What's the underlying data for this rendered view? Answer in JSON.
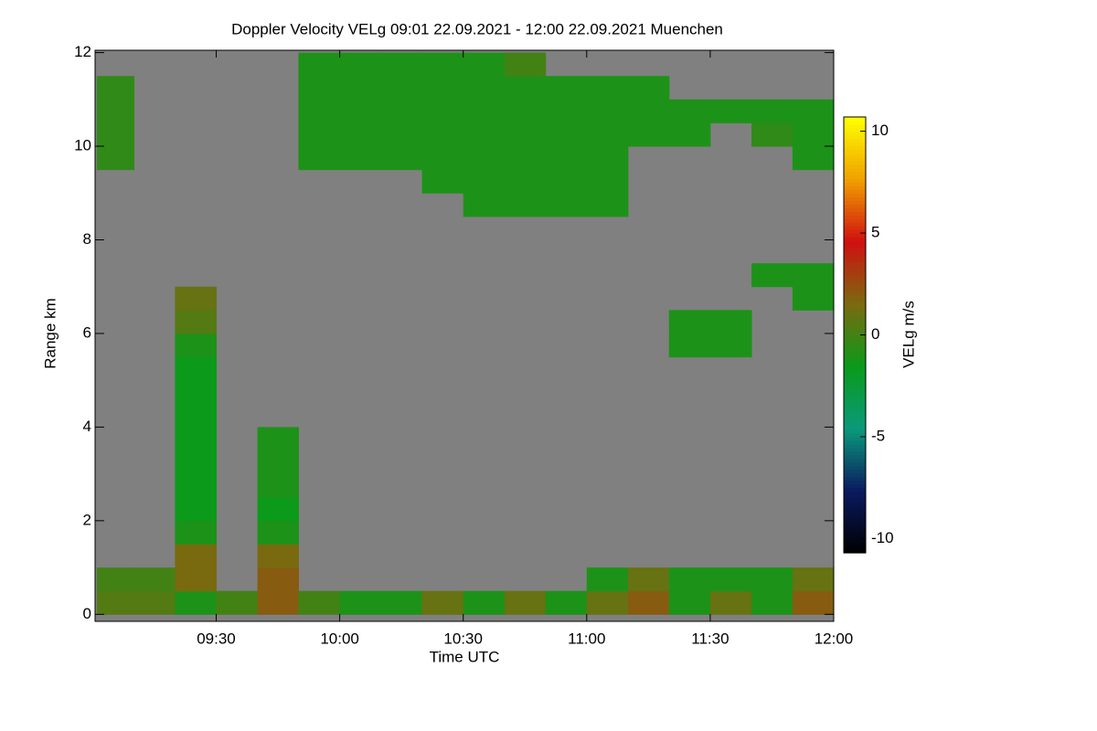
{
  "chart_data": {
    "type": "heatmap",
    "title": "Doppler Velocity VELg   09:01 22.09.2021 - 12:00 22.09.2021 Muenchen",
    "xlabel": "Time UTC",
    "ylabel": "Range km",
    "colorbar_label": "VELg m/s",
    "x_edges": [
      9.017,
      9.167,
      9.333,
      9.5,
      9.667,
      9.833,
      10.0,
      10.167,
      10.333,
      10.5,
      10.667,
      10.833,
      11.0,
      11.167,
      11.333,
      11.5,
      11.667,
      11.833,
      12.0
    ],
    "y_edges": [
      0,
      0.5,
      1,
      1.5,
      2,
      2.5,
      3,
      3.5,
      4,
      4.5,
      5,
      5.5,
      6,
      6.5,
      7,
      7.5,
      8,
      8.5,
      9,
      9.5,
      10,
      10.5,
      11,
      11.5,
      12
    ],
    "z": [
      [
        0.5,
        0.5,
        -1,
        0,
        2,
        0,
        -1,
        -1,
        1,
        -1,
        1,
        -1,
        1,
        2,
        -1,
        1,
        -1,
        2
      ],
      [
        0,
        0,
        1.5,
        null,
        2,
        null,
        null,
        null,
        null,
        null,
        null,
        null,
        -1,
        1,
        -1,
        -1,
        -1,
        1
      ],
      [
        null,
        null,
        1.5,
        null,
        1.5,
        null,
        null,
        null,
        null,
        null,
        null,
        null,
        null,
        null,
        null,
        null,
        null,
        null
      ],
      [
        null,
        null,
        -1,
        null,
        -1,
        null,
        null,
        null,
        null,
        null,
        null,
        null,
        null,
        null,
        null,
        null,
        null,
        null
      ],
      [
        null,
        null,
        -1.5,
        null,
        -1.5,
        null,
        null,
        null,
        null,
        null,
        null,
        null,
        null,
        null,
        null,
        null,
        null,
        null
      ],
      [
        null,
        null,
        -1.5,
        null,
        -1,
        null,
        null,
        null,
        null,
        null,
        null,
        null,
        null,
        null,
        null,
        null,
        null,
        null
      ],
      [
        null,
        null,
        -1.5,
        null,
        -1,
        null,
        null,
        null,
        null,
        null,
        null,
        null,
        null,
        null,
        null,
        null,
        null,
        null
      ],
      [
        null,
        null,
        -1.5,
        null,
        -1,
        null,
        null,
        null,
        null,
        null,
        null,
        null,
        null,
        null,
        null,
        null,
        null,
        null
      ],
      [
        null,
        null,
        -1.5,
        null,
        null,
        null,
        null,
        null,
        null,
        null,
        null,
        null,
        null,
        null,
        null,
        null,
        null,
        null
      ],
      [
        null,
        null,
        -1.5,
        null,
        null,
        null,
        null,
        null,
        null,
        null,
        null,
        null,
        null,
        null,
        null,
        null,
        null,
        null
      ],
      [
        null,
        null,
        -1.5,
        null,
        null,
        null,
        null,
        null,
        null,
        null,
        null,
        null,
        null,
        null,
        null,
        null,
        null,
        null
      ],
      [
        null,
        null,
        -1,
        null,
        null,
        null,
        null,
        null,
        null,
        null,
        null,
        null,
        null,
        null,
        -1,
        -1,
        null,
        null
      ],
      [
        null,
        null,
        0.5,
        null,
        null,
        null,
        null,
        null,
        null,
        null,
        null,
        null,
        null,
        null,
        -1,
        -1,
        null,
        null
      ],
      [
        null,
        null,
        1,
        null,
        null,
        null,
        null,
        null,
        null,
        null,
        null,
        null,
        null,
        null,
        null,
        null,
        null,
        -1
      ],
      [
        null,
        null,
        null,
        null,
        null,
        null,
        null,
        null,
        null,
        null,
        null,
        null,
        null,
        null,
        null,
        null,
        -1,
        -1
      ],
      [
        null,
        null,
        null,
        null,
        null,
        null,
        null,
        null,
        null,
        null,
        null,
        null,
        null,
        null,
        null,
        null,
        null,
        null
      ],
      [
        null,
        null,
        null,
        null,
        null,
        null,
        null,
        null,
        null,
        null,
        null,
        null,
        null,
        null,
        null,
        null,
        null,
        null
      ],
      [
        null,
        null,
        null,
        null,
        null,
        null,
        null,
        null,
        null,
        -1,
        -1,
        -1,
        -1,
        null,
        null,
        null,
        null,
        null
      ],
      [
        null,
        null,
        null,
        null,
        null,
        null,
        null,
        null,
        -1,
        -1,
        -1,
        -1,
        -1,
        null,
        null,
        null,
        null,
        null
      ],
      [
        -0.5,
        null,
        null,
        null,
        null,
        -1,
        -1,
        -1,
        -1,
        -1,
        -1,
        -1,
        -1,
        null,
        null,
        null,
        null,
        -1
      ],
      [
        -0.5,
        null,
        null,
        null,
        null,
        -1,
        -1,
        -1,
        -1,
        -1,
        -1,
        -1,
        -1,
        -1,
        -1,
        null,
        -0.5,
        -1
      ],
      [
        -0.5,
        null,
        null,
        null,
        null,
        -1,
        -1,
        -1,
        -1,
        -1,
        -1,
        -1,
        -1,
        -1,
        -1,
        -1,
        -1,
        -1
      ],
      [
        -0.5,
        null,
        null,
        null,
        null,
        -1,
        -1,
        -1,
        -1,
        -1,
        -1,
        -1,
        -1,
        -1,
        null,
        null,
        null,
        null
      ],
      [
        null,
        null,
        null,
        null,
        null,
        -1,
        -1,
        -1,
        -1,
        -1,
        0,
        null,
        null,
        null,
        null,
        null,
        null,
        null
      ]
    ],
    "xlim": [
      9.017,
      12.0
    ],
    "xticks": [
      {
        "value": 9.5,
        "label": "09:30"
      },
      {
        "value": 10.0,
        "label": "10:00"
      },
      {
        "value": 10.5,
        "label": "10:30"
      },
      {
        "value": 11.0,
        "label": "11:00"
      },
      {
        "value": 11.5,
        "label": "11:30"
      },
      {
        "value": 12.0,
        "label": "12:00"
      }
    ],
    "ylim": [
      -0.15,
      12.05
    ],
    "yticks": [
      0,
      2,
      4,
      6,
      8,
      10,
      12
    ],
    "zlim": [
      -10.7,
      10.7
    ],
    "zticks": [
      -10,
      -5,
      0,
      5,
      10
    ],
    "missing_color": "#808080",
    "colormap": [
      "#000000",
      "#0a1a60",
      "#0a9a7a",
      "#0a9a1a",
      "#7a6a10",
      "#d01010",
      "#f0a000",
      "#ffff00"
    ]
  }
}
